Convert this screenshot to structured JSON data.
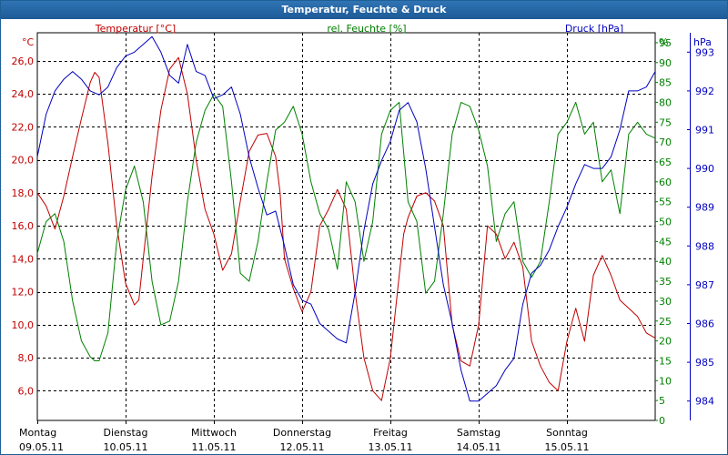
{
  "title": "Temperatur, Feuchte & Druck",
  "colors": {
    "temperature": "#c00000",
    "humidity": "#008000",
    "pressure": "#0000c0",
    "grid": "#000000",
    "titlebar": "#2568a6"
  },
  "chart_data": {
    "type": "line",
    "title": "Temperatur, Feuchte & Druck",
    "xlabel": "",
    "x_range": [
      0,
      7
    ],
    "grid": true,
    "legend": "top",
    "days": [
      {
        "name": "Montag",
        "date": "09.05.11"
      },
      {
        "name": "Dienstag",
        "date": "10.05.11"
      },
      {
        "name": "Mittwoch",
        "date": "11.05.11"
      },
      {
        "name": "Donnerstag",
        "date": "12.05.11"
      },
      {
        "name": "Freitag",
        "date": "13.05.11"
      },
      {
        "name": "Samstag",
        "date": "14.05.11"
      },
      {
        "name": "Sonntag",
        "date": "15.05.11"
      }
    ],
    "axes": {
      "temperature": {
        "unit": "°C",
        "label": "Temperatur [°C]",
        "ylim": [
          4.2,
          27.7
        ],
        "ticks": [
          "26,0",
          "24,0",
          "22,0",
          "20,0",
          "18,0",
          "16,0",
          "14,0",
          "12,0",
          "10,0",
          "8,0",
          "6,0"
        ],
        "tick_values": [
          26,
          24,
          22,
          20,
          18,
          16,
          14,
          12,
          10,
          8,
          6
        ]
      },
      "humidity": {
        "unit": "%",
        "label": "rel. Feuchte [%]",
        "ylim": [
          0,
          97.5
        ],
        "ticks": [
          "95",
          "90",
          "85",
          "80",
          "75",
          "70",
          "65",
          "60",
          "55",
          "50",
          "45",
          "40",
          "35",
          "30",
          "25",
          "20",
          "15",
          "10",
          "5",
          "0"
        ],
        "tick_values": [
          95,
          90,
          85,
          80,
          75,
          70,
          65,
          60,
          55,
          50,
          45,
          40,
          35,
          30,
          25,
          20,
          15,
          10,
          5,
          0
        ]
      },
      "pressure": {
        "unit": "hPa",
        "label": "Druck [hPa]",
        "ylim": [
          983.5,
          993.5
        ],
        "ticks": [
          "993",
          "992",
          "991",
          "990",
          "989",
          "988",
          "987",
          "986",
          "985",
          "984"
        ],
        "tick_values": [
          993,
          992,
          991,
          990,
          989,
          988,
          987,
          986,
          985,
          984
        ]
      }
    },
    "series": [
      {
        "name": "Temperatur [°C]",
        "axis": "temperature",
        "x": [
          0,
          0.1,
          0.2,
          0.3,
          0.4,
          0.5,
          0.6,
          0.65,
          0.7,
          0.8,
          0.9,
          1.0,
          1.1,
          1.15,
          1.2,
          1.3,
          1.4,
          1.5,
          1.6,
          1.7,
          1.75,
          1.8,
          1.9,
          2.0,
          2.1,
          2.2,
          2.3,
          2.4,
          2.5,
          2.6,
          2.7,
          2.75,
          2.8,
          2.9,
          3.0,
          3.1,
          3.2,
          3.3,
          3.4,
          3.5,
          3.6,
          3.7,
          3.8,
          3.9,
          4.0,
          4.1,
          4.15,
          4.2,
          4.3,
          4.4,
          4.5,
          4.6,
          4.7,
          4.8,
          4.9,
          5.0,
          5.1,
          5.2,
          5.3,
          5.4,
          5.5,
          5.6,
          5.7,
          5.8,
          5.9,
          6.0,
          6.1,
          6.2,
          6.3,
          6.4,
          6.5,
          6.6,
          6.7,
          6.8,
          6.9,
          7.0
        ],
        "values": [
          18.0,
          17.2,
          15.8,
          17.8,
          20.2,
          22.5,
          24.7,
          25.3,
          25.0,
          21.0,
          16.0,
          12.5,
          11.2,
          11.5,
          14.0,
          19.0,
          23.0,
          25.5,
          26.2,
          24.0,
          22.0,
          20.0,
          17.0,
          15.5,
          13.3,
          14.3,
          17.5,
          20.5,
          21.5,
          21.6,
          20.2,
          18.0,
          14.0,
          12.2,
          10.8,
          12.0,
          16.0,
          17.0,
          18.2,
          17.0,
          12.0,
          8.0,
          6.0,
          5.4,
          8.0,
          13.0,
          15.5,
          16.5,
          17.8,
          18.0,
          17.5,
          16.0,
          10.0,
          7.8,
          7.5,
          10.0,
          16.0,
          15.5,
          14.0,
          15.0,
          13.5,
          9.0,
          7.5,
          6.5,
          6.0,
          9.0,
          11.0,
          9.0,
          13.0,
          14.2,
          13.0,
          11.5,
          11.0,
          10.5,
          9.5,
          9.2
        ]
      },
      {
        "name": "rel. Feuchte [%]",
        "axis": "humidity",
        "x": [
          0,
          0.1,
          0.2,
          0.3,
          0.4,
          0.5,
          0.6,
          0.65,
          0.7,
          0.8,
          0.9,
          1.0,
          1.1,
          1.2,
          1.3,
          1.4,
          1.5,
          1.6,
          1.7,
          1.8,
          1.9,
          2.0,
          2.1,
          2.2,
          2.3,
          2.4,
          2.5,
          2.6,
          2.7,
          2.8,
          2.9,
          3.0,
          3.1,
          3.2,
          3.3,
          3.4,
          3.5,
          3.6,
          3.7,
          3.8,
          3.9,
          4.0,
          4.1,
          4.2,
          4.3,
          4.4,
          4.5,
          4.6,
          4.7,
          4.8,
          4.9,
          5.0,
          5.1,
          5.2,
          5.3,
          5.4,
          5.5,
          5.6,
          5.7,
          5.8,
          5.9,
          6.0,
          6.1,
          6.2,
          6.3,
          6.4,
          6.5,
          6.6,
          6.7,
          6.8,
          6.9,
          7.0
        ],
        "values": [
          42,
          50,
          52,
          45,
          30,
          20,
          16,
          15,
          15,
          22,
          45,
          58,
          64,
          55,
          35,
          24,
          25,
          35,
          55,
          70,
          78,
          82,
          79,
          60,
          37,
          35,
          45,
          60,
          73,
          75,
          79,
          72,
          60,
          52,
          48,
          38,
          60,
          55,
          40,
          50,
          72,
          78,
          80,
          55,
          50,
          32,
          35,
          52,
          72,
          80,
          79,
          73,
          64,
          45,
          52,
          55,
          40,
          36,
          40,
          55,
          72,
          75,
          80,
          72,
          75,
          60,
          63,
          52,
          72,
          75,
          72,
          71
        ]
      },
      {
        "name": "Druck [hPa]",
        "axis": "pressure",
        "x": [
          0,
          0.1,
          0.2,
          0.3,
          0.4,
          0.5,
          0.6,
          0.7,
          0.8,
          0.9,
          1.0,
          1.1,
          1.2,
          1.3,
          1.4,
          1.5,
          1.6,
          1.7,
          1.8,
          1.9,
          2.0,
          2.1,
          2.2,
          2.3,
          2.4,
          2.5,
          2.6,
          2.7,
          2.8,
          2.9,
          3.0,
          3.1,
          3.2,
          3.3,
          3.4,
          3.5,
          3.6,
          3.7,
          3.8,
          3.9,
          4.0,
          4.1,
          4.2,
          4.3,
          4.4,
          4.5,
          4.6,
          4.7,
          4.8,
          4.9,
          5.0,
          5.1,
          5.2,
          5.3,
          5.4,
          5.5,
          5.6,
          5.7,
          5.8,
          5.9,
          6.0,
          6.1,
          6.2,
          6.3,
          6.4,
          6.5,
          6.6,
          6.7,
          6.8,
          6.9,
          7.0
        ],
        "values": [
          990.3,
          991.4,
          992.0,
          992.3,
          992.5,
          992.3,
          992.0,
          991.9,
          992.1,
          992.6,
          992.9,
          993.0,
          993.2,
          993.4,
          993.0,
          992.4,
          992.2,
          993.2,
          992.5,
          992.4,
          991.8,
          991.9,
          992.1,
          991.4,
          990.3,
          989.5,
          988.8,
          988.9,
          988.0,
          987.0,
          986.6,
          986.5,
          986.0,
          985.8,
          985.6,
          985.5,
          986.8,
          988.4,
          989.6,
          990.2,
          990.7,
          991.5,
          991.7,
          991.2,
          990.0,
          988.5,
          987.0,
          986.0,
          984.8,
          984.0,
          984.0,
          984.2,
          984.4,
          984.8,
          985.1,
          986.5,
          987.3,
          987.5,
          987.9,
          988.5,
          989.0,
          989.6,
          990.1,
          990.0,
          990.0,
          990.3,
          991.0,
          992.0,
          992.0,
          992.1,
          992.5
        ]
      }
    ]
  }
}
